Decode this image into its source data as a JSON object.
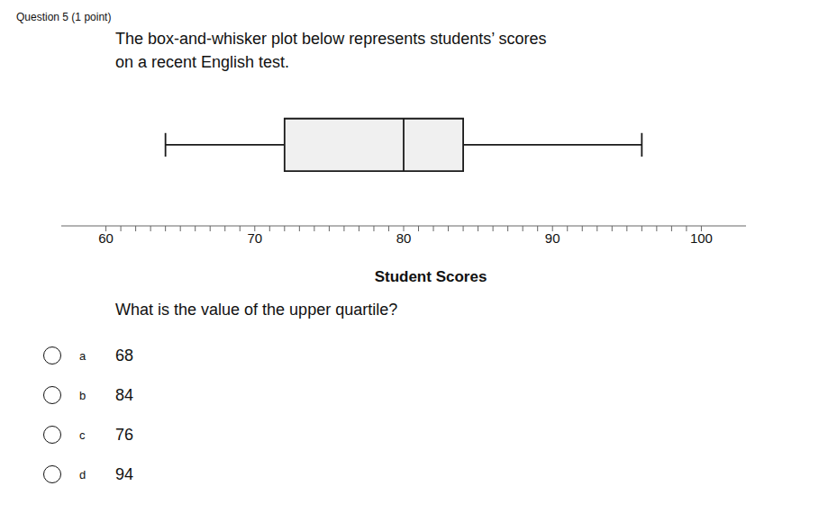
{
  "chart_data": {
    "type": "box",
    "title": "Student Scores",
    "annotations": [
      "Question 5 (1 point)",
      "The box-and-whisker plot below represents students’ scores",
      "on a recent English test.",
      "What is the value of the upper quartile?"
    ],
    "choices": [
      {
        "label": "a",
        "text": "68"
      },
      {
        "label": "b",
        "text": "84"
      },
      {
        "label": "c",
        "text": "76"
      },
      {
        "label": "d",
        "text": "94"
      }
    ],
    "values": {
      "min": 64,
      "q1": 72,
      "median": 80,
      "q3": 84,
      "max": 96
    },
    "xlim": [
      57,
      103
    ],
    "xticks": [
      60,
      70,
      80,
      90,
      100
    ],
    "color": "#f0f0f0"
  }
}
